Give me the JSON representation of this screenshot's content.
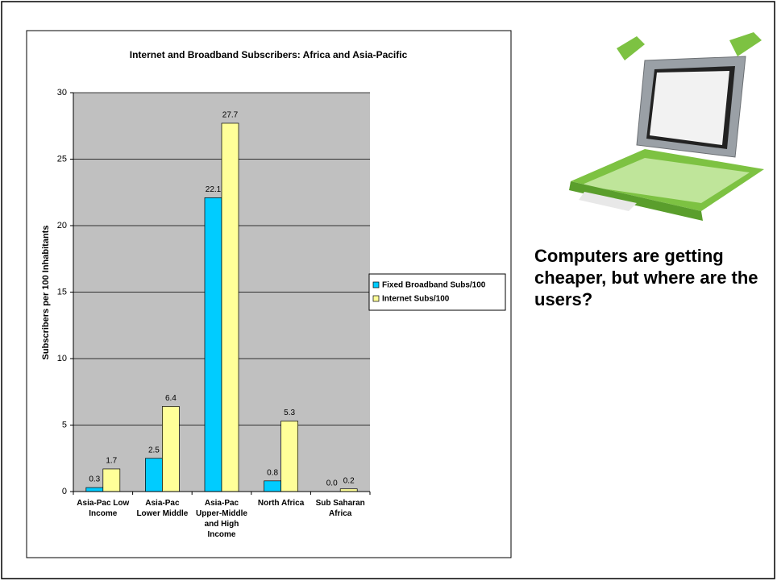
{
  "chart_data": {
    "type": "bar",
    "title": "Internet and Broadband Subscribers: Africa and Asia-Pacific",
    "y_label": "Subscribers per 100 Inhabitants",
    "categories": [
      "Asia-Pac Low Income",
      "Asia-Pac Lower Middle",
      "Asia-Pac Upper-Middle and High Income",
      "North Africa",
      "Sub Saharan Africa"
    ],
    "series": [
      {
        "name": "Fixed Broadband Subs/100",
        "color": "#00ccff",
        "values": [
          0.3,
          2.5,
          22.1,
          0.8,
          0
        ],
        "value_labels": [
          "0.3",
          "2.5",
          "22.1",
          "0.8",
          "0.0"
        ]
      },
      {
        "name": "Internet  Subs/100",
        "color": "#ffff99",
        "values": [
          1.7,
          6.4,
          27.7,
          5.3,
          0.2
        ]
      }
    ],
    "ylim": [
      0,
      30
    ],
    "yticks": [
      0,
      5,
      10,
      15,
      20,
      25,
      30
    ],
    "grid": true,
    "legend": "right"
  },
  "side_text": "Computers are getting cheaper, but where are the users?"
}
